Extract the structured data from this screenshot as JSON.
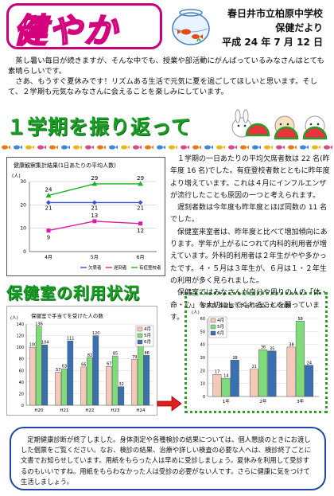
{
  "header": {
    "logo_text": "健やか",
    "school": "春日井市立柏原中学校",
    "newsletter": "保健だより",
    "date": "平成 24 年 7 月 12 日"
  },
  "intro": {
    "p1": "蒸し暑い毎日が続きますが、そんな中でも、授業や部活動にがんばっているみなさんはとても素晴らしいです。",
    "p2": "さあ、もうすぐ夏休みです！リズムある生活で元気に夏を過ごしてほしいと思います。そして、２学期も元気なみなさんに会えることを楽しみにしています。"
  },
  "section1": {
    "title": "１学期を振り返って"
  },
  "section2": {
    "title": "保健室の利用状況"
  },
  "article": {
    "p1": "１学期の一日あたりの平均欠席者数は 22 名(昨年度 16 名)でした。有症登校者数とともに昨年度より増えています。これは４月にインフルエンザが流行したことも原因の一つと考えられます。",
    "p2": "遅刻者数は今年度も昨年度とほぼ同数の 11 名でした。",
    "p3": "保健室来室者は、昨年度と比べて増加傾向にあります。学年が上がるにつれて内科的利用者が増えています。外科的利用者は２年生がやや多かったです。４・５月は３年生が、６月は１・２年生の利用が多く見られました。",
    "p4": "保健室ではみなさんが自分や周りの人の「体・命・心」を大切にしてくれることを願っています。"
  },
  "notice": {
    "text": "定期健康診断が終了しました。身体測定や各種検診の結果については、個人懇談のときにお渡しした個票をご覧ください。なお、検診の結果、治療や詳しい検査の必要な人へは、検診終了ごとに文書でお知らせしています。用紙をもらった人は早めに受診しましょう。夏休みを利用して受診するのもいいですね。用紙をもらわなかった人は受診の必要がない人です。さらに健康に気をつけて生活しましょう。"
  },
  "chart_data": [
    {
      "type": "line",
      "title": "健康観察集計結果(1日あたりの平均人数)",
      "ylabel": "(人)",
      "categories": [
        "4月",
        "5月",
        "6月"
      ],
      "ylim": [
        0,
        30
      ],
      "yticks": [
        0,
        10,
        20,
        30
      ],
      "series": [
        {
          "name": "欠席者",
          "values": [
            21,
            21,
            21
          ],
          "color": "#3b4fd8"
        },
        {
          "name": "遅刻者",
          "values": [
            9,
            13,
            12
          ],
          "color": "#e01aa8"
        },
        {
          "name": "有症登校者",
          "values": [
            24,
            29,
            29
          ],
          "color": "#20b020"
        }
      ],
      "legend": "bottom-right"
    },
    {
      "type": "bar",
      "title": "保健室で手当てを受けた人の数",
      "ylabel": "(人)",
      "categories": [
        "H20",
        "H21",
        "H22",
        "H23",
        "H24"
      ],
      "ylim": [
        0,
        140
      ],
      "yticks": [
        0,
        20,
        40,
        60,
        80,
        100,
        120,
        140
      ],
      "series": [
        {
          "name": "4月",
          "values": [
            100,
            57,
            66,
            67,
            79
          ],
          "color": "#f4c9b8"
        },
        {
          "name": "5月",
          "values": [
            136,
            63,
            82,
            85,
            106
          ],
          "color": "#7fdc7a"
        },
        {
          "name": "6月",
          "values": [
            104,
            111,
            120,
            32,
            86
          ],
          "color": "#3a6fb0"
        }
      ],
      "legend": "top-right"
    },
    {
      "type": "bar",
      "title": "学年別 保健室で手当てを受けた人の数",
      "ylabel": "(人)",
      "categories": [
        "1年",
        "2年",
        "3年"
      ],
      "ylim": [
        0,
        60
      ],
      "yticks": [
        0,
        10,
        20,
        30,
        40,
        50,
        60
      ],
      "series": [
        {
          "name": "4月",
          "values": [
            17,
            21,
            38
          ],
          "color": "#f4c9b8"
        },
        {
          "name": "5月",
          "values": [
            14,
            36,
            58
          ],
          "color": "#7fdc7a"
        },
        {
          "name": "6月",
          "values": [
            28,
            35,
            24
          ],
          "color": "#3a6fb0"
        }
      ],
      "legend": "top-left"
    }
  ]
}
